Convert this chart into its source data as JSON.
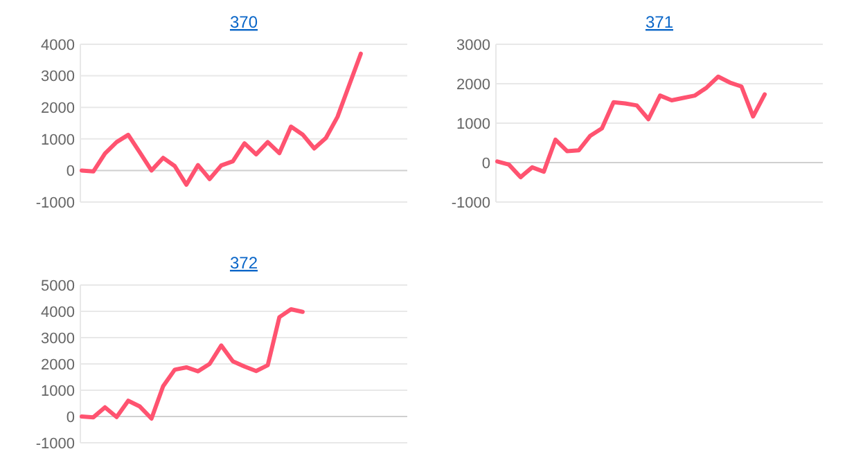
{
  "chart_data": [
    {
      "type": "line",
      "title": "370",
      "categories": [
        null,
        null,
        null,
        null,
        null,
        null,
        null,
        null,
        null,
        null,
        null,
        null,
        null,
        null,
        null,
        null,
        null,
        null,
        null,
        null,
        null,
        null,
        null,
        null,
        null,
        null,
        null,
        null,
        null
      ],
      "series": [
        {
          "color": "#ff5370",
          "values": [
            0,
            -30,
            540,
            900,
            1130,
            570,
            0,
            400,
            140,
            -450,
            170,
            -270,
            160,
            290,
            860,
            510,
            900,
            550,
            1390,
            1140,
            700,
            1030,
            1700,
            2700,
            3700,
            null,
            null,
            null,
            null
          ]
        }
      ],
      "ylim": [
        -1000,
        4000
      ],
      "yticks": [
        -1000,
        0,
        1000,
        2000,
        3000,
        4000
      ],
      "grid": "y",
      "marker": "none",
      "line_style": "solid",
      "tick_labels": "y"
    },
    {
      "type": "line",
      "title": "371",
      "categories": [
        null,
        null,
        null,
        null,
        null,
        null,
        null,
        null,
        null,
        null,
        null,
        null,
        null,
        null,
        null,
        null,
        null,
        null,
        null,
        null,
        null,
        null,
        null,
        null,
        null,
        null,
        null,
        null,
        null
      ],
      "series": [
        {
          "color": "#ff5370",
          "values": [
            30,
            -50,
            -370,
            -120,
            -230,
            580,
            290,
            310,
            680,
            870,
            1530,
            1500,
            1450,
            1100,
            1700,
            1580,
            1640,
            1700,
            1900,
            2180,
            2030,
            1930,
            1170,
            1730,
            null,
            null,
            null,
            null,
            null
          ]
        }
      ],
      "ylim": [
        -1000,
        3000
      ],
      "yticks": [
        -1000,
        0,
        1000,
        2000,
        3000
      ],
      "grid": "y",
      "marker": "none",
      "line_style": "solid",
      "tick_labels": "y"
    },
    {
      "type": "line",
      "title": "372",
      "categories": [
        null,
        null,
        null,
        null,
        null,
        null,
        null,
        null,
        null,
        null,
        null,
        null,
        null,
        null,
        null,
        null,
        null,
        null,
        null,
        null,
        null,
        null,
        null,
        null,
        null,
        null,
        null,
        null,
        null
      ],
      "series": [
        {
          "color": "#ff5370",
          "values": [
            0,
            -30,
            350,
            -20,
            600,
            380,
            -80,
            1150,
            1780,
            1870,
            1720,
            2000,
            2700,
            2100,
            1900,
            1730,
            1950,
            3780,
            4080,
            3980,
            null,
            null,
            null,
            null,
            null,
            null,
            null,
            null,
            null
          ]
        }
      ],
      "ylim": [
        -1000,
        5000
      ],
      "yticks": [
        -1000,
        0,
        1000,
        2000,
        3000,
        4000,
        5000
      ],
      "grid": "y",
      "marker": "none",
      "line_style": "solid",
      "tick_labels": "y"
    }
  ]
}
